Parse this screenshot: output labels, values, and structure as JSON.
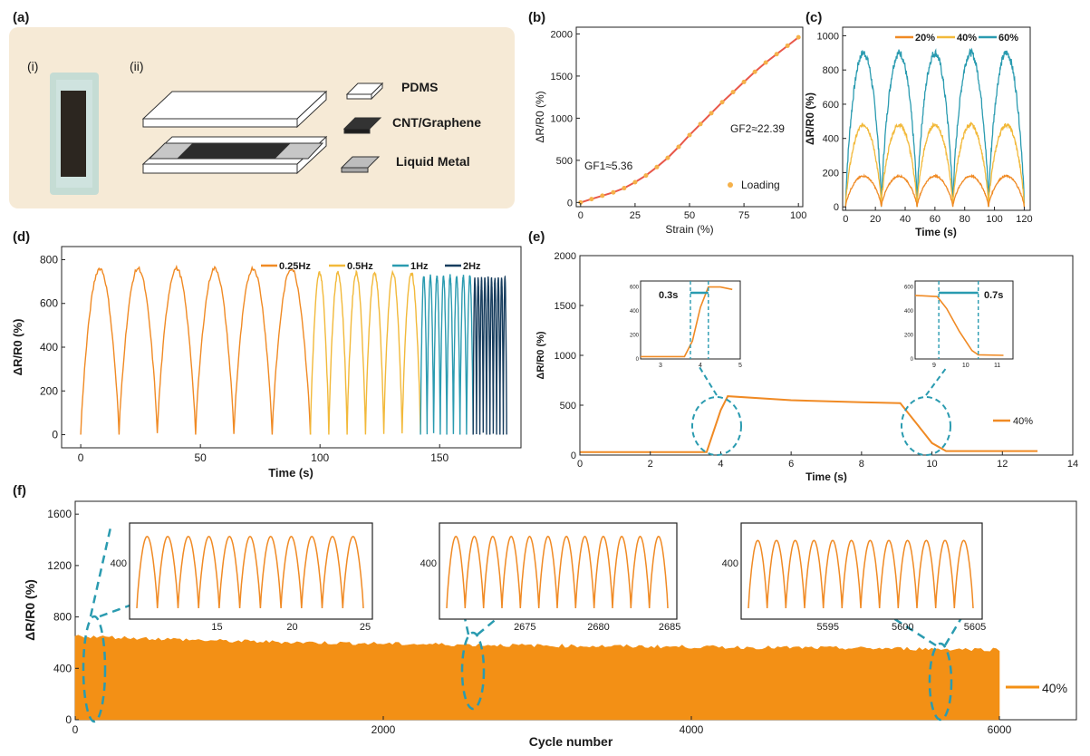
{
  "panel_a": {
    "label": "(a)",
    "sub_i": "(i)",
    "sub_ii": "(ii)",
    "layers": [
      "PDMS",
      "CNT/Graphene",
      "Liquid Metal"
    ],
    "colors": {
      "bg": "#f6ead6",
      "cnt": "#2c2c2c",
      "lm": "#b8b8b8",
      "device_bg": "#b9d8d3"
    }
  },
  "chart_data": [
    {
      "id": "b",
      "panel_label": "(b)",
      "type": "scatter",
      "xlabel": "Strain (%)",
      "ylabel": "ΔR/R0 (%)",
      "xlim": [
        0,
        100
      ],
      "ylim": [
        0,
        2000
      ],
      "xticks": [
        "0",
        "25",
        "50",
        "75",
        "100"
      ],
      "yticks": [
        "0",
        "500",
        "1000",
        "1500",
        "2000"
      ],
      "series": [
        {
          "name": "Loading",
          "color": "#f5b14a",
          "x": [
            0,
            5,
            10,
            15,
            20,
            25,
            30,
            35,
            40,
            45,
            50,
            55,
            60,
            65,
            70,
            75,
            80,
            85,
            90,
            95,
            100
          ],
          "y": [
            0,
            40,
            80,
            120,
            170,
            240,
            320,
            420,
            530,
            660,
            800,
            930,
            1060,
            1190,
            1310,
            1430,
            1550,
            1660,
            1760,
            1860,
            1960
          ]
        }
      ],
      "fit_color": "#e8584a",
      "annotations": [
        "GF1≈5.36",
        "GF2≈22.39"
      ]
    },
    {
      "id": "c",
      "panel_label": "(c)",
      "type": "line",
      "xlabel": "Time (s)",
      "ylabel": "ΔR/R0 (%)",
      "xlim": [
        0,
        120
      ],
      "ylim": [
        0,
        1000
      ],
      "xticks": [
        "0",
        "20",
        "40",
        "60",
        "80",
        "100",
        "120"
      ],
      "yticks": [
        "0",
        "200",
        "400",
        "600",
        "800",
        "1000"
      ],
      "cycles": 5,
      "period": 24,
      "series": [
        {
          "name": "20%",
          "color": "#f08a24",
          "peak": 180
        },
        {
          "name": "40%",
          "color": "#f2b93a",
          "peak": 480
        },
        {
          "name": "60%",
          "color": "#2a9bb0",
          "peak": 900
        }
      ]
    },
    {
      "id": "d",
      "panel_label": "(d)",
      "type": "line",
      "xlabel": "Time (s)",
      "ylabel": "ΔR/R0 (%)",
      "xlim": [
        0,
        180
      ],
      "ylim": [
        0,
        800
      ],
      "xticks": [
        "0",
        "50",
        "100",
        "150"
      ],
      "yticks": [
        "0",
        "200",
        "400",
        "600",
        "800"
      ],
      "series": [
        {
          "name": "0.25Hz",
          "color": "#f08a24",
          "start": 0,
          "end": 96,
          "cycles": 6,
          "peak": 760
        },
        {
          "name": "0.5Hz",
          "color": "#f2b93a",
          "start": 96,
          "end": 142,
          "cycles": 6,
          "peak": 740
        },
        {
          "name": "1Hz",
          "color": "#2a9bb0",
          "start": 142,
          "end": 164,
          "cycles": 8,
          "peak": 725
        },
        {
          "name": "2Hz",
          "color": "#173d5e",
          "start": 164,
          "end": 178,
          "cycles": 10,
          "peak": 715
        }
      ]
    },
    {
      "id": "e",
      "panel_label": "(e)",
      "type": "line",
      "xlabel": "Time (s)",
      "ylabel": "ΔR/R0 (%)",
      "xlim": [
        0,
        14
      ],
      "ylim": [
        0,
        2000
      ],
      "xticks": [
        "0",
        "2",
        "4",
        "6",
        "8",
        "10",
        "12",
        "14"
      ],
      "yticks": [
        "0",
        "500",
        "1000",
        "1500",
        "2000"
      ],
      "series": [
        {
          "name": "40%",
          "color": "#f08a24",
          "x": [
            0,
            3.6,
            4.0,
            4.2,
            6,
            8,
            9.1,
            9.6,
            10.0,
            10.4,
            13
          ],
          "y": [
            30,
            30,
            450,
            590,
            550,
            530,
            520,
            300,
            120,
            40,
            40
          ]
        }
      ],
      "insets": [
        {
          "xticks": [
            "3",
            "4",
            "5"
          ],
          "yticks": [
            "0",
            "200",
            "400",
            "600"
          ],
          "label": "0.3s"
        },
        {
          "xticks": [
            "9",
            "10",
            "11"
          ],
          "yticks": [
            "0",
            "200",
            "400",
            "600"
          ],
          "label": "0.7s"
        }
      ],
      "accent": "#2a9bb0"
    },
    {
      "id": "f",
      "panel_label": "(f)",
      "type": "area",
      "xlabel": "Cycle number",
      "ylabel": "ΔR/R0 (%)",
      "xlim": [
        0,
        6500
      ],
      "ylim": [
        0,
        1700
      ],
      "xticks": [
        "0",
        "2000",
        "4000",
        "6000"
      ],
      "yticks": [
        "0",
        "400",
        "800",
        "1200",
        "1600"
      ],
      "series": [
        {
          "name": "40%",
          "color": "#f39015",
          "x": [
            0,
            1000,
            2000,
            3000,
            4000,
            5000,
            6000
          ],
          "y": [
            650,
            610,
            590,
            575,
            565,
            555,
            545
          ]
        }
      ],
      "insets": [
        {
          "xticks": [
            "15",
            "20",
            "25"
          ],
          "yticks": [
            "400"
          ]
        },
        {
          "xticks": [
            "2675",
            "2680",
            "2685"
          ],
          "yticks": [
            "400"
          ]
        },
        {
          "xticks": [
            "5595",
            "5600",
            "5605"
          ],
          "yticks": [
            "400"
          ]
        }
      ],
      "accent": "#2a9bb0"
    }
  ]
}
